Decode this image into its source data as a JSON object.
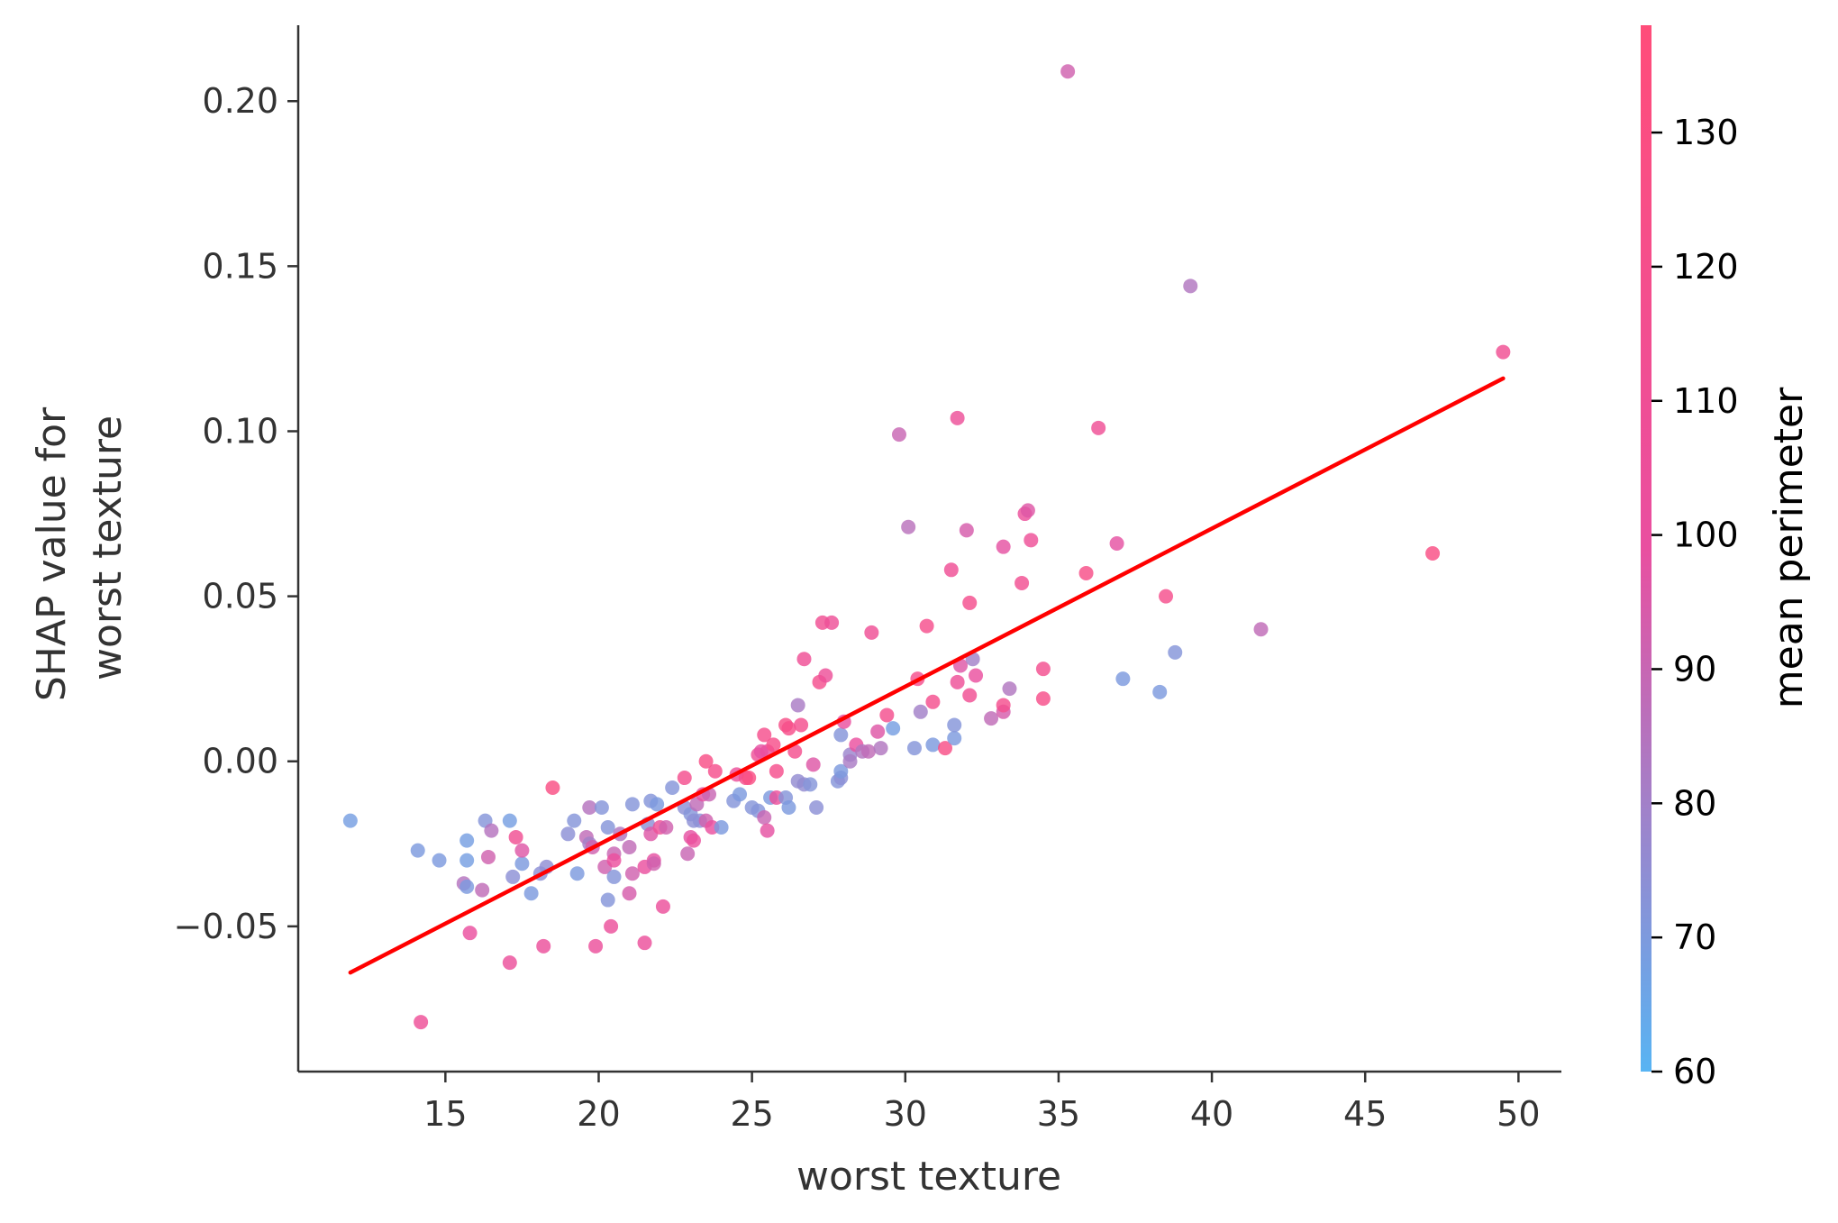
{
  "chart_data": {
    "type": "scatter",
    "xlabel": "worst texture",
    "ylabel": [
      "SHAP value for",
      "worst texture"
    ],
    "colorbar_label": "mean perimeter",
    "xlim": [
      10.2,
      51.4
    ],
    "ylim": [
      -0.094,
      0.223
    ],
    "x_ticks": [
      15,
      20,
      25,
      30,
      35,
      40,
      45,
      50
    ],
    "x_tick_labels": [
      "15",
      "20",
      "25",
      "30",
      "35",
      "40",
      "45",
      "50"
    ],
    "y_ticks": [
      -0.05,
      0.0,
      0.05,
      0.1,
      0.15,
      0.2
    ],
    "y_tick_labels": [
      "−0.05",
      "0.00",
      "0.05",
      "0.10",
      "0.15",
      "0.20"
    ],
    "colorbar_range": [
      60,
      138
    ],
    "colorbar_ticks": [
      60,
      70,
      80,
      90,
      100,
      110,
      120,
      130
    ],
    "colorbar_tick_labels": [
      "60",
      "70",
      "80",
      "90",
      "100",
      "110",
      "120",
      "130"
    ],
    "colormap": [
      "#58b4f3",
      "#e94fa0",
      "#ff4d7a"
    ],
    "trend_line": {
      "x": [
        11.9,
        49.5
      ],
      "y": [
        -0.064,
        0.116
      ],
      "color": "#ff0000"
    },
    "points": [
      [
        11.9,
        -0.018,
        68
      ],
      [
        14.1,
        -0.027,
        70
      ],
      [
        14.2,
        -0.079,
        108
      ],
      [
        14.8,
        -0.03,
        70
      ],
      [
        15.6,
        -0.037,
        85
      ],
      [
        15.7,
        -0.024,
        68
      ],
      [
        15.7,
        -0.03,
        68
      ],
      [
        15.7,
        -0.038,
        70
      ],
      [
        15.8,
        -0.052,
        100
      ],
      [
        16.2,
        -0.039,
        88
      ],
      [
        16.3,
        -0.018,
        72
      ],
      [
        16.4,
        -0.029,
        92
      ],
      [
        16.5,
        -0.021,
        85
      ],
      [
        17.1,
        -0.018,
        68
      ],
      [
        17.1,
        -0.061,
        104
      ],
      [
        17.2,
        -0.035,
        74
      ],
      [
        17.3,
        -0.023,
        112
      ],
      [
        17.5,
        -0.031,
        70
      ],
      [
        17.5,
        -0.027,
        96
      ],
      [
        17.8,
        -0.04,
        70
      ],
      [
        18.1,
        -0.034,
        74
      ],
      [
        18.2,
        -0.056,
        104
      ],
      [
        18.3,
        -0.032,
        75
      ],
      [
        18.5,
        -0.008,
        128
      ],
      [
        19.0,
        -0.022,
        74
      ],
      [
        19.2,
        -0.018,
        72
      ],
      [
        19.3,
        -0.034,
        70
      ],
      [
        19.6,
        -0.023,
        88
      ],
      [
        19.7,
        -0.014,
        85
      ],
      [
        19.7,
        -0.025,
        80
      ],
      [
        19.8,
        -0.026,
        92
      ],
      [
        19.9,
        -0.056,
        104
      ],
      [
        20.1,
        -0.014,
        72
      ],
      [
        20.2,
        -0.032,
        92
      ],
      [
        20.3,
        -0.02,
        72
      ],
      [
        20.3,
        -0.042,
        72
      ],
      [
        20.4,
        -0.05,
        104
      ],
      [
        20.5,
        -0.028,
        90
      ],
      [
        20.5,
        -0.03,
        102
      ],
      [
        20.5,
        -0.035,
        72
      ],
      [
        20.7,
        -0.022,
        84
      ],
      [
        21.0,
        -0.026,
        88
      ],
      [
        21.0,
        -0.04,
        94
      ],
      [
        21.1,
        -0.034,
        92
      ],
      [
        21.1,
        -0.013,
        72
      ],
      [
        21.5,
        -0.032,
        100
      ],
      [
        21.5,
        -0.055,
        104
      ],
      [
        21.6,
        -0.019,
        74
      ],
      [
        21.7,
        -0.022,
        96
      ],
      [
        21.7,
        -0.012,
        72
      ],
      [
        21.8,
        -0.03,
        98
      ],
      [
        21.8,
        -0.031,
        92
      ],
      [
        21.9,
        -0.013,
        70
      ],
      [
        22.0,
        -0.02,
        108
      ],
      [
        22.1,
        -0.044,
        104
      ],
      [
        22.2,
        -0.02,
        92
      ],
      [
        22.4,
        -0.008,
        72
      ],
      [
        22.8,
        -0.005,
        118
      ],
      [
        22.8,
        -0.014,
        74
      ],
      [
        22.9,
        -0.028,
        90
      ],
      [
        23.0,
        -0.016,
        72
      ],
      [
        23.0,
        -0.023,
        98
      ],
      [
        23.1,
        -0.024,
        102
      ],
      [
        23.1,
        -0.018,
        74
      ],
      [
        23.2,
        -0.013,
        88
      ],
      [
        23.3,
        -0.018,
        74
      ],
      [
        23.4,
        -0.01,
        98
      ],
      [
        23.5,
        -0.018,
        92
      ],
      [
        23.5,
        0.0,
        126
      ],
      [
        23.6,
        -0.01,
        90
      ],
      [
        23.7,
        -0.02,
        100
      ],
      [
        23.8,
        -0.003,
        120
      ],
      [
        24.0,
        -0.02,
        70
      ],
      [
        24.4,
        -0.012,
        72
      ],
      [
        24.5,
        -0.004,
        104
      ],
      [
        24.6,
        -0.01,
        70
      ],
      [
        24.8,
        -0.005,
        118
      ],
      [
        24.9,
        -0.005,
        128
      ],
      [
        25.0,
        -0.014,
        72
      ],
      [
        25.2,
        0.002,
        108
      ],
      [
        25.2,
        -0.015,
        72
      ],
      [
        25.3,
        0.003,
        98
      ],
      [
        25.4,
        0.008,
        120
      ],
      [
        25.4,
        -0.017,
        90
      ],
      [
        25.5,
        -0.021,
        98
      ],
      [
        25.5,
        0.003,
        100
      ],
      [
        25.6,
        -0.011,
        70
      ],
      [
        25.7,
        0.005,
        122
      ],
      [
        25.8,
        -0.011,
        104
      ],
      [
        25.8,
        -0.003,
        120
      ],
      [
        26.1,
        -0.011,
        72
      ],
      [
        26.1,
        0.011,
        124
      ],
      [
        26.2,
        -0.014,
        70
      ],
      [
        26.2,
        0.01,
        122
      ],
      [
        26.4,
        0.003,
        118
      ],
      [
        26.5,
        0.017,
        82
      ],
      [
        26.5,
        -0.006,
        76
      ],
      [
        26.6,
        0.011,
        118
      ],
      [
        26.7,
        0.031,
        110
      ],
      [
        26.7,
        -0.007,
        76
      ],
      [
        26.9,
        -0.007,
        72
      ],
      [
        27.0,
        -0.001,
        96
      ],
      [
        27.1,
        -0.014,
        74
      ],
      [
        27.2,
        0.024,
        118
      ],
      [
        27.3,
        0.042,
        112
      ],
      [
        27.4,
        0.026,
        106
      ],
      [
        27.6,
        0.042,
        108
      ],
      [
        27.8,
        -0.006,
        72
      ],
      [
        27.9,
        0.008,
        72
      ],
      [
        27.9,
        -0.005,
        74
      ],
      [
        27.9,
        -0.003,
        70
      ],
      [
        28.0,
        0.012,
        100
      ],
      [
        28.2,
        0.002,
        78
      ],
      [
        28.2,
        0.0,
        82
      ],
      [
        28.4,
        0.005,
        100
      ],
      [
        28.6,
        0.003,
        84
      ],
      [
        28.8,
        0.003,
        88
      ],
      [
        28.9,
        0.039,
        110
      ],
      [
        29.1,
        0.009,
        96
      ],
      [
        29.2,
        0.004,
        84
      ],
      [
        29.4,
        0.014,
        118
      ],
      [
        29.6,
        0.01,
        68
      ],
      [
        29.8,
        0.099,
        90
      ],
      [
        30.1,
        0.071,
        86
      ],
      [
        30.3,
        0.004,
        72
      ],
      [
        30.4,
        0.025,
        120
      ],
      [
        30.5,
        0.015,
        80
      ],
      [
        30.7,
        0.041,
        120
      ],
      [
        30.9,
        0.005,
        70
      ],
      [
        30.9,
        0.018,
        118
      ],
      [
        31.3,
        0.004,
        126
      ],
      [
        31.5,
        0.058,
        110
      ],
      [
        31.6,
        0.007,
        70
      ],
      [
        31.6,
        0.011,
        72
      ],
      [
        31.7,
        0.024,
        108
      ],
      [
        31.7,
        0.104,
        106
      ],
      [
        31.8,
        0.029,
        96
      ],
      [
        32.0,
        0.07,
        94
      ],
      [
        32.1,
        0.048,
        118
      ],
      [
        32.1,
        0.02,
        112
      ],
      [
        32.2,
        0.031,
        80
      ],
      [
        32.3,
        0.026,
        100
      ],
      [
        32.8,
        0.013,
        88
      ],
      [
        33.2,
        0.015,
        94
      ],
      [
        33.2,
        0.065,
        98
      ],
      [
        33.2,
        0.017,
        118
      ],
      [
        33.4,
        0.022,
        84
      ],
      [
        33.8,
        0.054,
        114
      ],
      [
        33.9,
        0.075,
        104
      ],
      [
        34.0,
        0.076,
        96
      ],
      [
        34.1,
        0.067,
        108
      ],
      [
        34.5,
        0.028,
        116
      ],
      [
        34.5,
        0.019,
        122
      ],
      [
        35.3,
        0.209,
        92
      ],
      [
        35.9,
        0.057,
        124
      ],
      [
        36.3,
        0.101,
        110
      ],
      [
        36.9,
        0.066,
        98
      ],
      [
        37.1,
        0.025,
        70
      ],
      [
        38.3,
        0.021,
        70
      ],
      [
        38.5,
        0.05,
        120
      ],
      [
        38.8,
        0.033,
        72
      ],
      [
        39.3,
        0.144,
        84
      ],
      [
        41.6,
        0.04,
        88
      ],
      [
        47.2,
        0.063,
        128
      ],
      [
        49.5,
        0.124,
        112
      ]
    ]
  }
}
